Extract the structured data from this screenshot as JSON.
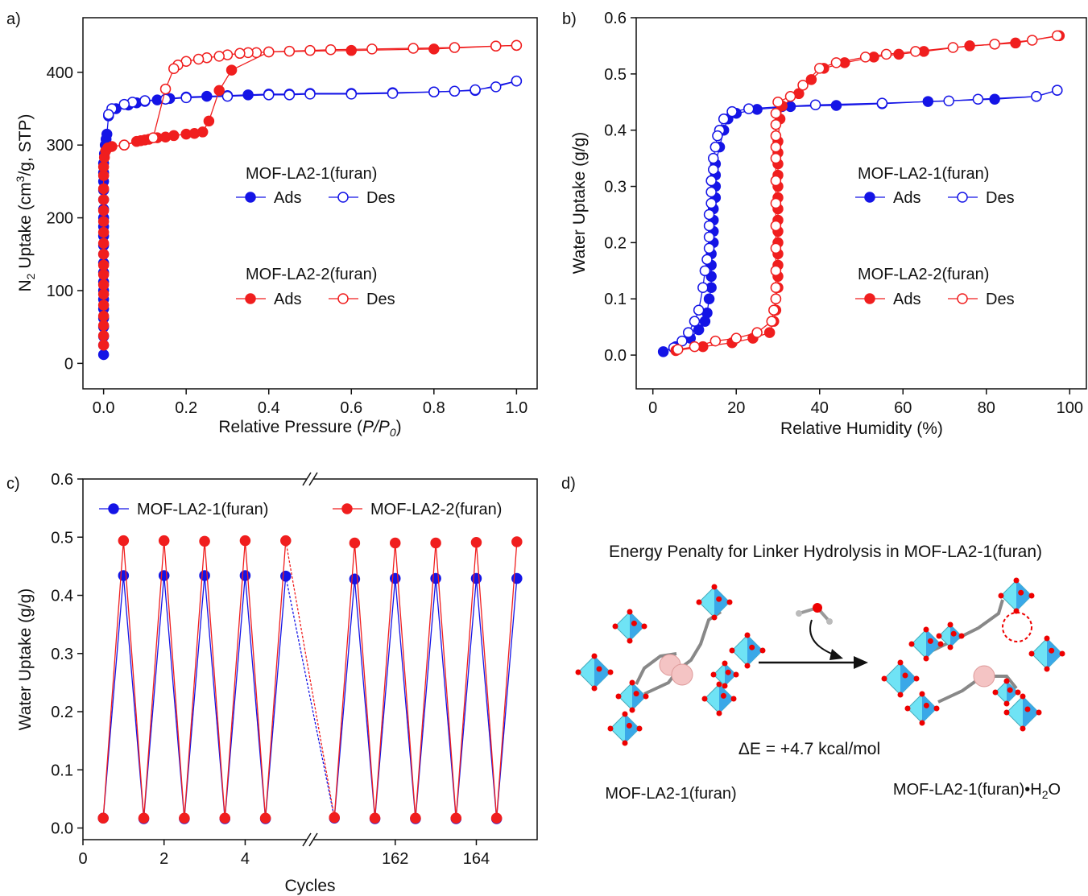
{
  "chart_data": [
    {
      "type": "line",
      "panel_label": "a)",
      "xlabel": [
        "Relative Pressure (",
        "P/P",
        "0",
        ")"
      ],
      "ylabel": [
        "N",
        "2",
        " Uptake (cm",
        "3",
        "/g, STP)"
      ],
      "xlim": [
        -0.05,
        1.05
      ],
      "ylim": [
        -35,
        475
      ],
      "xticks": [
        {
          "value": 0,
          "label": "0.0"
        },
        0.2,
        0.4,
        0.6,
        0.8,
        {
          "value": 1,
          "label": "1.0"
        }
      ],
      "yticks": [
        0,
        100,
        200,
        300,
        400
      ],
      "groups": [
        {
          "name": "MOF-LA2-1(furan)",
          "color": "#1414e6",
          "series": [
            {
              "name": "Ads",
              "filled": true,
              "x": [
                0,
                0,
                0,
                0,
                0,
                0,
                0,
                0,
                0,
                0,
                0,
                0,
                0,
                0,
                0,
                0,
                0,
                0,
                0,
                0,
                0,
                0,
                0.002,
                0.004,
                0.006,
                0.008,
                0.012,
                0.03,
                0.06,
                0.08,
                0.1,
                0.13,
                0.16,
                0.2,
                0.25,
                0.3,
                0.35,
                0.4,
                0.45,
                0.5,
                0.6,
                0.7,
                0.8,
                0.9,
                1.0
              ],
              "values": [
                12,
                25,
                37,
                50,
                62,
                75,
                88,
                100,
                112,
                125,
                138,
                150,
                162,
                175,
                188,
                200,
                212,
                225,
                238,
                250,
                262,
                275,
                288,
                300,
                308,
                315,
                340,
                350,
                355,
                358,
                360,
                362,
                364,
                366,
                367,
                368,
                369,
                370,
                370,
                371,
                371,
                372,
                373,
                375,
                388
              ]
            },
            {
              "name": "Des",
              "filled": false,
              "x": [
                1.0,
                0.95,
                0.9,
                0.85,
                0.8,
                0.7,
                0.6,
                0.5,
                0.45,
                0.4,
                0.3,
                0.2,
                0.15,
                0.1,
                0.07,
                0.05,
                0.02,
                0.012
              ],
              "values": [
                388,
                380,
                376,
                374,
                373,
                371,
                370,
                370,
                369,
                369,
                367,
                365,
                363,
                361,
                359,
                356,
                350,
                342
              ]
            }
          ]
        },
        {
          "name": "MOF-LA2-2(furan)",
          "color": "#f01e1e",
          "series": [
            {
              "name": "Ads",
              "filled": true,
              "x": [
                0,
                0,
                0,
                0,
                0,
                0,
                0,
                0,
                0,
                0,
                0,
                0,
                0,
                0,
                0,
                0,
                0,
                0,
                0.002,
                0.005,
                0.01,
                0.02,
                0.05,
                0.08,
                0.09,
                0.1,
                0.11,
                0.13,
                0.15,
                0.17,
                0.2,
                0.22,
                0.24,
                0.255,
                0.28,
                0.31,
                0.4,
                0.6,
                0.8,
                0.95,
                1.0
              ],
              "values": [
                25,
                38,
                52,
                65,
                80,
                95,
                108,
                122,
                135,
                150,
                165,
                180,
                195,
                210,
                225,
                240,
                258,
                270,
                283,
                292,
                296,
                298,
                300,
                305,
                306,
                307,
                308,
                310,
                311,
                313,
                315,
                316,
                318,
                333,
                375,
                403,
                428,
                430,
                432,
                436,
                437
              ]
            },
            {
              "name": "Des",
              "filled": false,
              "x": [
                1.0,
                0.95,
                0.85,
                0.75,
                0.65,
                0.55,
                0.5,
                0.45,
                0.4,
                0.37,
                0.35,
                0.33,
                0.3,
                0.28,
                0.25,
                0.23,
                0.2,
                0.18,
                0.17,
                0.15,
                0.12,
                0.05
              ],
              "values": [
                437,
                436,
                434,
                433,
                432,
                431,
                430,
                429,
                428,
                427,
                427,
                426,
                424,
                422,
                420,
                418,
                415,
                410,
                405,
                377,
                310,
                300
              ]
            }
          ]
        }
      ]
    },
    {
      "type": "line",
      "panel_label": "b)",
      "xlabel": "Relative Humidity (%)",
      "ylabel": "Water Uptake (g/g)",
      "xlim": [
        -4,
        104
      ],
      "ylim": [
        -0.06,
        0.6
      ],
      "xticks": [
        0,
        20,
        40,
        60,
        80,
        100
      ],
      "yticks": [
        {
          "value": 0,
          "label": "0.0"
        },
        0.1,
        0.2,
        0.3,
        0.4,
        0.5,
        0.6
      ],
      "groups": [
        {
          "name": "MOF-LA2-1(furan)",
          "color": "#1414e6",
          "series": [
            {
              "name": "Ads",
              "filled": true,
              "x": [
                2.5,
                5.5,
                9,
                11,
                12.5,
                13,
                13.5,
                14,
                14,
                14,
                14,
                14.5,
                14.5,
                14.5,
                14.5,
                15,
                15,
                15,
                15,
                16,
                17,
                18,
                20,
                25,
                33,
                44,
                55,
                66,
                82,
                92,
                97
              ],
              "values": [
                0.006,
                0.015,
                0.03,
                0.045,
                0.06,
                0.075,
                0.1,
                0.12,
                0.14,
                0.16,
                0.18,
                0.2,
                0.22,
                0.24,
                0.26,
                0.28,
                0.3,
                0.32,
                0.34,
                0.37,
                0.4,
                0.42,
                0.43,
                0.437,
                0.442,
                0.444,
                0.447,
                0.451,
                0.455,
                0.46,
                0.471
              ]
            },
            {
              "name": "Des",
              "filled": false,
              "x": [
                97,
                92,
                78,
                71,
                55,
                39,
                31,
                23,
                19,
                17,
                16,
                15.5,
                15,
                14.5,
                14.5,
                14,
                14,
                14,
                13.5,
                13.5,
                13.5,
                13.5,
                13,
                12.5,
                12,
                11,
                10,
                8.5,
                7,
                5
              ],
              "values": [
                0.471,
                0.46,
                0.455,
                0.452,
                0.448,
                0.445,
                0.442,
                0.438,
                0.433,
                0.42,
                0.4,
                0.39,
                0.37,
                0.35,
                0.33,
                0.31,
                0.29,
                0.27,
                0.25,
                0.23,
                0.21,
                0.19,
                0.17,
                0.15,
                0.12,
                0.08,
                0.06,
                0.04,
                0.025,
                0.013
              ]
            }
          ]
        },
        {
          "name": "MOF-LA2-2(furan)",
          "color": "#f01e1e",
          "series": [
            {
              "name": "Ads",
              "filled": true,
              "x": [
                5.5,
                12,
                19,
                24,
                28,
                29,
                29.5,
                29.5,
                30,
                30,
                30,
                30,
                30,
                30,
                30,
                30,
                30,
                30,
                30,
                30,
                30,
                30,
                30.5,
                31,
                35,
                38,
                41,
                46,
                53,
                59,
                65,
                76,
                87,
                97.5
              ],
              "values": [
                0.008,
                0.015,
                0.022,
                0.03,
                0.04,
                0.06,
                0.08,
                0.1,
                0.12,
                0.14,
                0.16,
                0.18,
                0.2,
                0.22,
                0.24,
                0.26,
                0.28,
                0.3,
                0.32,
                0.34,
                0.36,
                0.38,
                0.42,
                0.443,
                0.465,
                0.49,
                0.51,
                0.52,
                0.53,
                0.535,
                0.54,
                0.55,
                0.555,
                0.568
              ]
            },
            {
              "name": "Des",
              "filled": false,
              "x": [
                97,
                91,
                82,
                72,
                63,
                56,
                51,
                44,
                40,
                36,
                33,
                30,
                29.5,
                29.5,
                29.5,
                29.5,
                29.5,
                29.5,
                29.5,
                29.5,
                29.5,
                29.5,
                29.5,
                29.5,
                29,
                28.5,
                25,
                20,
                15,
                10,
                6
              ],
              "values": [
                0.568,
                0.56,
                0.553,
                0.547,
                0.54,
                0.535,
                0.53,
                0.52,
                0.51,
                0.48,
                0.46,
                0.45,
                0.43,
                0.41,
                0.39,
                0.37,
                0.35,
                0.31,
                0.27,
                0.23,
                0.19,
                0.15,
                0.12,
                0.1,
                0.08,
                0.06,
                0.04,
                0.03,
                0.025,
                0.015,
                0.01
              ]
            }
          ]
        }
      ]
    },
    {
      "type": "line",
      "panel_label": "c)",
      "xlabel": "Cycles",
      "ylabel": "Water Uptake (g/g)",
      "xlim": [
        [
          0,
          5.6
        ],
        [
          159.9,
          165.5
        ]
      ],
      "ylim": [
        -0.02,
        0.6
      ],
      "xticks": [
        0,
        2,
        4,
        162,
        164
      ],
      "yticks": [
        {
          "value": 0,
          "label": "0.0"
        },
        0.1,
        0.2,
        0.3,
        0.4,
        0.5,
        0.6
      ],
      "x": [
        0.5,
        1,
        1.5,
        2,
        2.5,
        3,
        3.5,
        4,
        4.5,
        5,
        160.5,
        161,
        161.5,
        162,
        162.5,
        163,
        163.5,
        164,
        164.5,
        165
      ],
      "series": [
        {
          "name": "MOF-LA2-1(furan)",
          "color": "#1414e6",
          "values": [
            0.017,
            0.434,
            0.016,
            0.434,
            0.016,
            0.434,
            0.016,
            0.434,
            0.016,
            0.433,
            0.017,
            0.428,
            0.016,
            0.429,
            0.016,
            0.429,
            0.016,
            0.429,
            0.016,
            0.429
          ]
        },
        {
          "name": "MOF-LA2-2(furan)",
          "color": "#f01e1e",
          "values": [
            0.017,
            0.494,
            0.017,
            0.494,
            0.017,
            0.493,
            0.017,
            0.494,
            0.017,
            0.494,
            0.018,
            0.49,
            0.017,
            0.49,
            0.017,
            0.49,
            0.017,
            0.491,
            0.017,
            0.492
          ]
        }
      ]
    }
  ],
  "diagram": {
    "panel_label": "d)",
    "title": "Energy Penalty for Linker Hydrolysis in MOF-LA2-1(furan)",
    "energy": "ΔE = +4.7 kcal/mol",
    "left_label": "MOF-LA2-1(furan)",
    "right_label": [
      "MOF-LA2-1(furan)•H",
      "2",
      "O"
    ]
  }
}
